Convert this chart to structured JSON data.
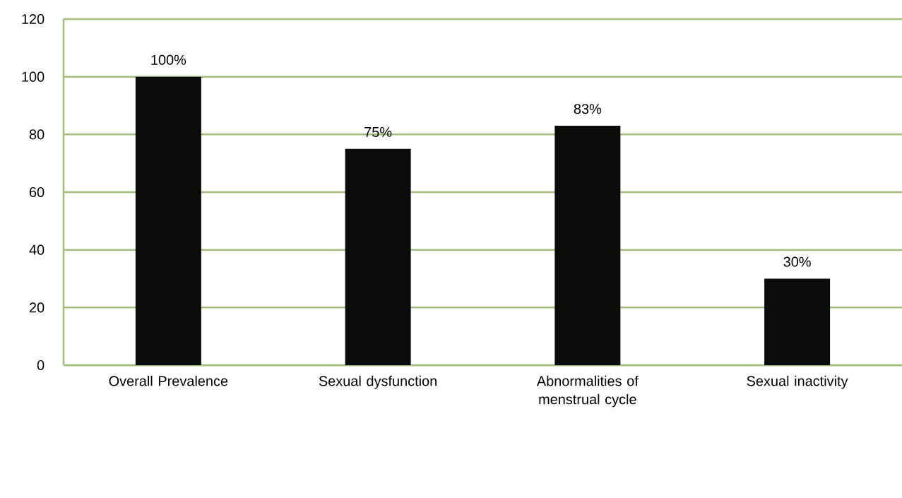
{
  "chart_data": {
    "type": "bar",
    "categories": [
      "Overall Prevalence",
      "Sexual dysfunction",
      "Abnormalities of menstrual cycle",
      "Sexual inactivity"
    ],
    "values": [
      100,
      75,
      83,
      30
    ],
    "value_labels": [
      "100%",
      "75%",
      "83%",
      "30%"
    ],
    "color": "#0a0c0a",
    "ylim": [
      0,
      120
    ],
    "yticks": [
      0,
      20,
      40,
      60,
      80,
      100,
      120
    ],
    "grid": "y"
  }
}
